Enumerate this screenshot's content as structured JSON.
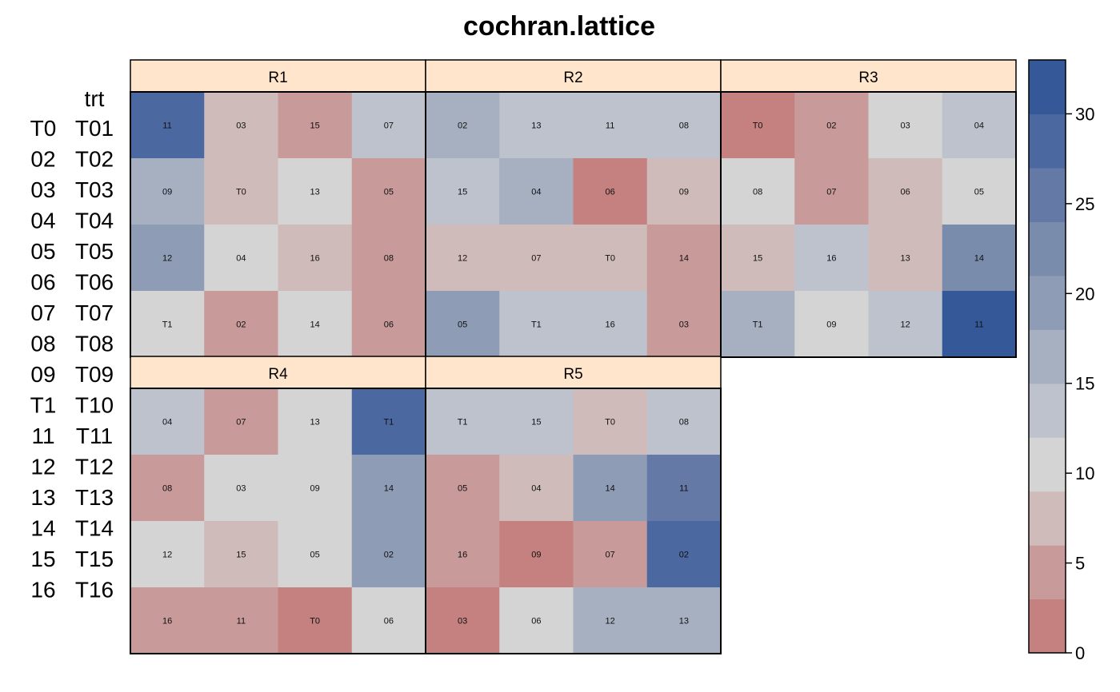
{
  "title": "cochran.lattice",
  "key": {
    "header": "trt",
    "codes": [
      "T0",
      "02",
      "03",
      "04",
      "05",
      "06",
      "07",
      "08",
      "09",
      "T1",
      "11",
      "12",
      "13",
      "14",
      "15",
      "16"
    ],
    "names": [
      "T01",
      "T02",
      "T03",
      "T04",
      "T05",
      "T06",
      "T07",
      "T08",
      "T09",
      "T10",
      "T11",
      "T12",
      "T13",
      "T14",
      "T15",
      "T16"
    ]
  },
  "colors": {
    "strip_fill": "#ffe5cc",
    "scale": [
      "#c4817f",
      "#c89a99",
      "#d0bbbb",
      "#d4d4d4",
      "#bdc2cc",
      "#a7b0c1",
      "#8f9cb6",
      "#7a8cac",
      "#6479a6",
      "#4b69a0",
      "#355898"
    ]
  },
  "chart_data": {
    "type": "heatmap",
    "title": "cochran.lattice",
    "zlim": [
      0,
      33
    ],
    "legend_ticks": [
      0,
      5,
      10,
      15,
      20,
      25,
      30
    ],
    "legend_position": "right",
    "panels": [
      {
        "name": "R1",
        "labels": [
          [
            "11",
            "03",
            "15",
            "07"
          ],
          [
            "09",
            "T0",
            "13",
            "05"
          ],
          [
            "12",
            "04",
            "16",
            "08"
          ],
          [
            "T1",
            "02",
            "14",
            "06"
          ]
        ],
        "values": [
          [
            27,
            7,
            5,
            14
          ],
          [
            17,
            8,
            11,
            5
          ],
          [
            20,
            11,
            8,
            5
          ],
          [
            11,
            4,
            11,
            5
          ]
        ]
      },
      {
        "name": "R2",
        "labels": [
          [
            "02",
            "13",
            "11",
            "08"
          ],
          [
            "15",
            "04",
            "06",
            "09"
          ],
          [
            "12",
            "07",
            "T0",
            "14"
          ],
          [
            "05",
            "T1",
            "16",
            "03"
          ]
        ],
        "values": [
          [
            17,
            14,
            14,
            14
          ],
          [
            14,
            17,
            2,
            8
          ],
          [
            8,
            8,
            8,
            5
          ],
          [
            20,
            14,
            14,
            5
          ]
        ]
      },
      {
        "name": "R3",
        "labels": [
          [
            "T0",
            "02",
            "03",
            "04"
          ],
          [
            "08",
            "07",
            "06",
            "05"
          ],
          [
            "15",
            "16",
            "13",
            "14"
          ],
          [
            "T1",
            "09",
            "12",
            "11"
          ]
        ],
        "values": [
          [
            2,
            5,
            11,
            14
          ],
          [
            11,
            5,
            8,
            11
          ],
          [
            8,
            14,
            8,
            23
          ],
          [
            17,
            11,
            14,
            32
          ]
        ]
      },
      {
        "name": "R4",
        "labels": [
          [
            "04",
            "07",
            "13",
            "T1"
          ],
          [
            "08",
            "03",
            "09",
            "14"
          ],
          [
            "12",
            "15",
            "05",
            "02"
          ],
          [
            "16",
            "11",
            "T0",
            "06"
          ]
        ],
        "values": [
          [
            14,
            5,
            11,
            29
          ],
          [
            5,
            11,
            11,
            20
          ],
          [
            11,
            8,
            11,
            20
          ],
          [
            5,
            5,
            2,
            11
          ]
        ]
      },
      {
        "name": "R5",
        "labels": [
          [
            "T1",
            "15",
            "T0",
            "08"
          ],
          [
            "05",
            "04",
            "14",
            "11"
          ],
          [
            "16",
            "09",
            "07",
            "02"
          ],
          [
            "03",
            "06",
            "12",
            "13"
          ]
        ],
        "values": [
          [
            14,
            14,
            8,
            14
          ],
          [
            5,
            8,
            20,
            26
          ],
          [
            5,
            2,
            5,
            29
          ],
          [
            2,
            11,
            17,
            17
          ]
        ]
      }
    ]
  }
}
